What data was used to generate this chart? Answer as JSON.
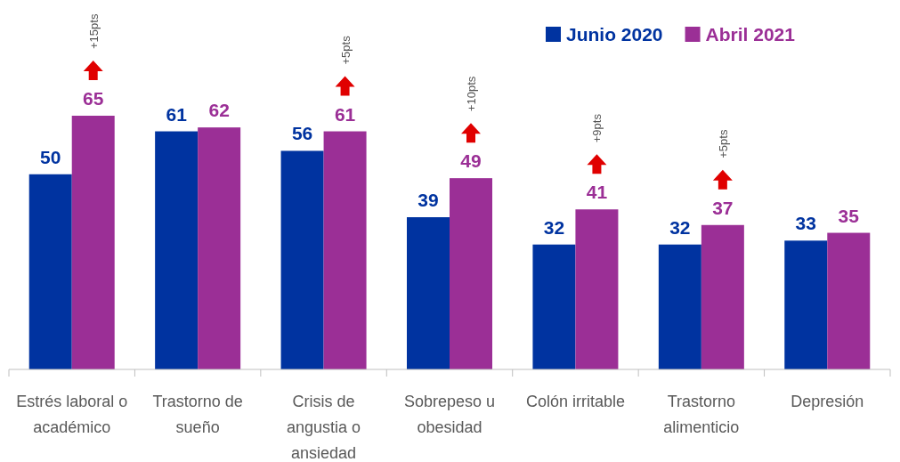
{
  "chart_data": {
    "type": "bar",
    "categories": [
      "Estrés laboral o académico",
      "Trastorno de sueño",
      "Crisis de angustia o ansiedad",
      "Sobrepeso u obesidad",
      "Colón irritable",
      "Trastorno alimenticio",
      "Depresión"
    ],
    "series": [
      {
        "name": "Junio 2020",
        "color": "#0033a0",
        "values": [
          50,
          61,
          56,
          39,
          32,
          32,
          33
        ]
      },
      {
        "name": "Abril 2021",
        "color": "#9b2f96",
        "values": [
          65,
          62,
          61,
          49,
          41,
          37,
          35
        ]
      }
    ],
    "data_labels": true,
    "legend": "top right",
    "annotations": [
      "+15pts",
      "+5pts",
      "+10pts",
      "+9pts",
      "+5pts"
    ]
  }
}
